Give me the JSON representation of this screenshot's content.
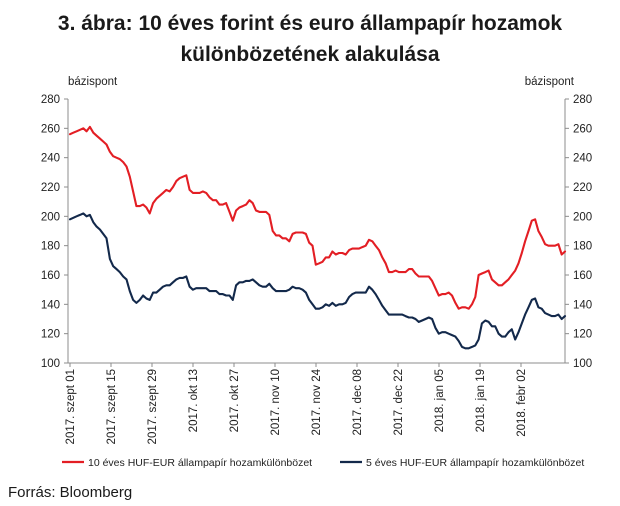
{
  "chart_data": {
    "type": "line",
    "title_line1": "3. ábra: 10 éves forint és euro állampapír hozamok",
    "title_line2": "különbözetének alakulása",
    "y_unit_left": "bázispont",
    "y_unit_right": "bázispont",
    "ylim": [
      100,
      280
    ],
    "yticks": [
      100,
      120,
      140,
      160,
      180,
      200,
      220,
      240,
      260,
      280
    ],
    "xticks": [
      "2017. szept 01",
      "2017. szept 15",
      "2017. szept 29",
      "2017. okt 13",
      "2017. okt 27",
      "2017. nov 10",
      "2017. nov 24",
      "2017. dec 08",
      "2017. dec 22",
      "2018. jan 05",
      "2018. jan 19",
      "2018. febr 02"
    ],
    "grid": false,
    "legend_position": "bottom",
    "series": [
      {
        "name": "10 éves HUF-EUR állampapír hozamkülönbözet",
        "color": "#e31e24",
        "values": [
          256,
          257,
          258,
          259,
          260,
          258,
          261,
          257,
          255,
          253,
          251,
          249,
          244,
          241,
          240,
          239,
          237,
          234,
          227,
          217,
          207,
          207,
          208,
          206,
          202,
          209,
          212,
          214,
          216,
          218,
          217,
          220,
          224,
          226,
          227,
          228,
          218,
          216,
          216,
          216,
          217,
          216,
          213,
          211,
          211,
          208,
          208,
          209,
          203,
          197,
          204,
          206,
          207,
          208,
          211,
          209,
          204,
          203,
          203,
          203,
          201,
          190,
          187,
          187,
          185,
          185,
          183,
          188,
          189,
          189,
          189,
          188,
          182,
          180,
          167,
          168,
          169,
          172,
          172,
          176,
          174,
          175,
          175,
          174,
          177,
          178,
          178,
          178,
          179,
          180,
          184,
          183,
          180,
          177,
          172,
          168,
          162,
          162,
          163,
          162,
          162,
          162,
          164,
          164,
          161,
          159,
          159,
          159,
          159,
          156,
          151,
          146,
          147,
          147,
          148,
          146,
          141,
          137,
          138,
          138,
          137,
          140,
          145,
          160,
          161,
          162,
          163,
          157,
          155,
          153,
          153,
          155,
          157,
          160,
          163,
          168,
          175,
          183,
          190,
          197,
          198,
          190,
          186,
          181,
          180,
          180,
          180,
          181,
          174,
          176
        ]
      },
      {
        "name": "5 éves HUF-EUR állampapír hozamkülönbözet",
        "color": "#13294b",
        "values": [
          198,
          199,
          200,
          201,
          202,
          200,
          201,
          196,
          193,
          191,
          188,
          185,
          171,
          166,
          164,
          162,
          159,
          157,
          149,
          143,
          141,
          143,
          146,
          144,
          143,
          148,
          148,
          150,
          152,
          153,
          153,
          155,
          157,
          158,
          158,
          159,
          152,
          150,
          151,
          151,
          151,
          151,
          149,
          149,
          149,
          147,
          147,
          146,
          146,
          143,
          153,
          155,
          155,
          156,
          156,
          157,
          155,
          153,
          152,
          152,
          154,
          151,
          149,
          149,
          149,
          149,
          150,
          152,
          151,
          151,
          150,
          148,
          143,
          140,
          137,
          137,
          138,
          140,
          139,
          141,
          139,
          140,
          140,
          141,
          145,
          147,
          148,
          148,
          148,
          148,
          152,
          150,
          147,
          143,
          139,
          136,
          133,
          133,
          133,
          133,
          133,
          132,
          131,
          131,
          130,
          128,
          129,
          130,
          131,
          130,
          124,
          120,
          121,
          121,
          120,
          119,
          118,
          115,
          111,
          110,
          110,
          111,
          112,
          116,
          127,
          129,
          128,
          125,
          125,
          120,
          118,
          118,
          121,
          123,
          116,
          121,
          127,
          133,
          138,
          143,
          144,
          138,
          137,
          134,
          133,
          132,
          132,
          133,
          130,
          132
        ]
      }
    ]
  },
  "source": "Forrás: Bloomberg"
}
